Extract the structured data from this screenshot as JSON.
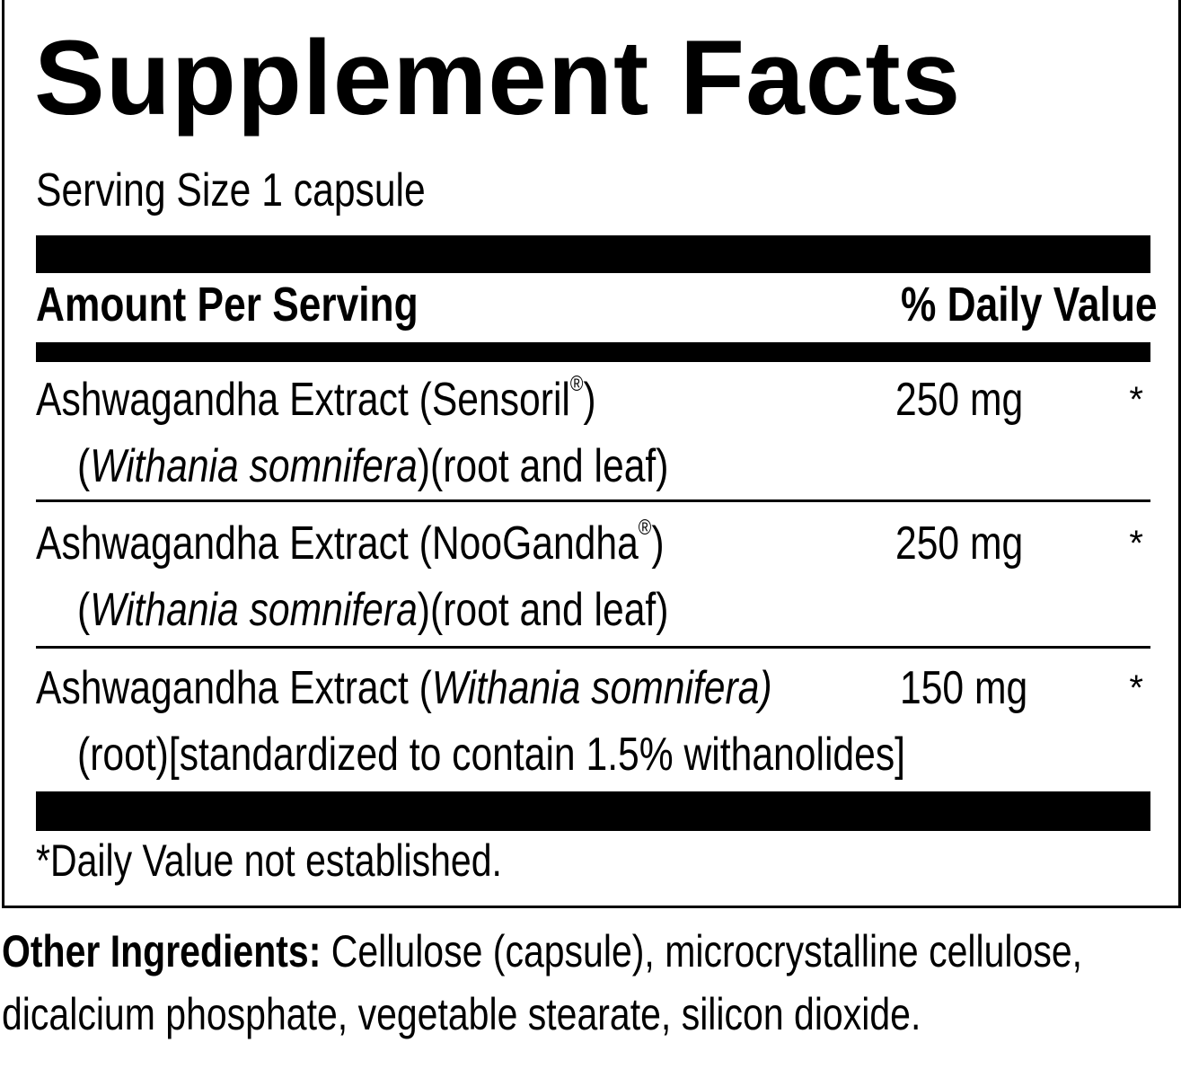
{
  "title": "Supplement Facts",
  "serving_size": "Serving Size 1 capsule",
  "header": {
    "amount": "Amount Per Serving",
    "dv": "% Daily Value"
  },
  "rows": [
    {
      "name": "Ashwagandha Extract (Sensoril",
      "mark": "®",
      "name_end": ")",
      "line2_pre": "(",
      "line2_italic": "Withania somnifera",
      "line2_post": ")(root and leaf)",
      "amount": "250 mg",
      "dv": "*"
    },
    {
      "name": "Ashwagandha Extract (NooGandha",
      "mark": "®",
      "name_end": ")",
      "line2_pre": "(",
      "line2_italic": "Withania somnifera",
      "line2_post": ")(root and leaf)",
      "amount": "250 mg",
      "dv": "*"
    },
    {
      "name": "Ashwagandha Extract (",
      "name_italic": "Withania somnifera)",
      "line2": "(root)[standardized to contain 1.5% withanolides]",
      "amount": "150 mg",
      "dv": "*"
    }
  ],
  "footnote": "*Daily Value not established.",
  "other_ingredients": {
    "label": "Other Ingredients:",
    "text": " Cellulose (capsule), microcrystalline cellulose,",
    "text2": "dicalcium phosphate, vegetable stearate, silicon dioxide."
  }
}
